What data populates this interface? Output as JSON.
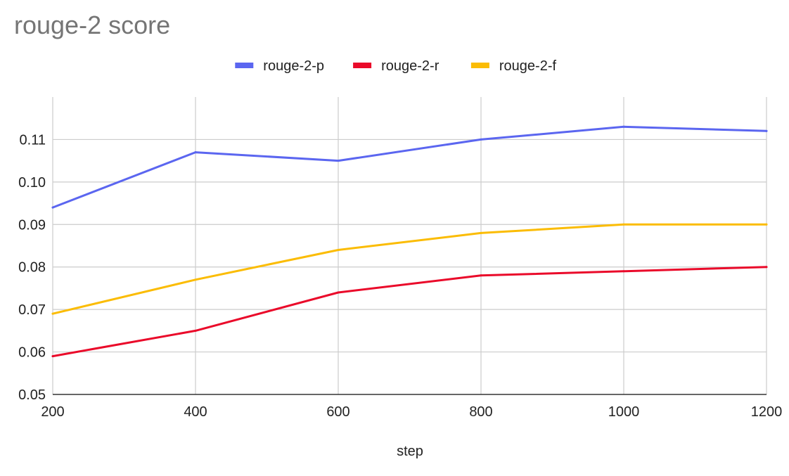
{
  "chart_data": {
    "type": "line",
    "title": "rouge-2 score",
    "xlabel": "step",
    "ylabel": "",
    "x": [
      200,
      400,
      600,
      800,
      1000,
      1200
    ],
    "xlim": [
      200,
      1200
    ],
    "ylim": [
      0.05,
      0.12
    ],
    "x_ticks": [
      200,
      400,
      600,
      800,
      1000,
      1200
    ],
    "y_ticks": [
      0.05,
      0.06,
      0.07,
      0.08,
      0.09,
      0.1,
      0.11
    ],
    "y_tick_labels": [
      "0.05",
      "0.06",
      "0.07",
      "0.08",
      "0.09",
      "0.10",
      "0.11"
    ],
    "grid": true,
    "legend_position": "top",
    "series": [
      {
        "name": "rouge-2-p",
        "color": "#5b66f0",
        "values": [
          0.094,
          0.107,
          0.105,
          0.11,
          0.113,
          0.112
        ]
      },
      {
        "name": "rouge-2-r",
        "color": "#ea0a2a",
        "values": [
          0.059,
          0.065,
          0.074,
          0.078,
          0.079,
          0.08
        ]
      },
      {
        "name": "rouge-2-f",
        "color": "#fbbc04",
        "values": [
          0.069,
          0.077,
          0.084,
          0.088,
          0.09,
          0.09
        ]
      }
    ]
  }
}
